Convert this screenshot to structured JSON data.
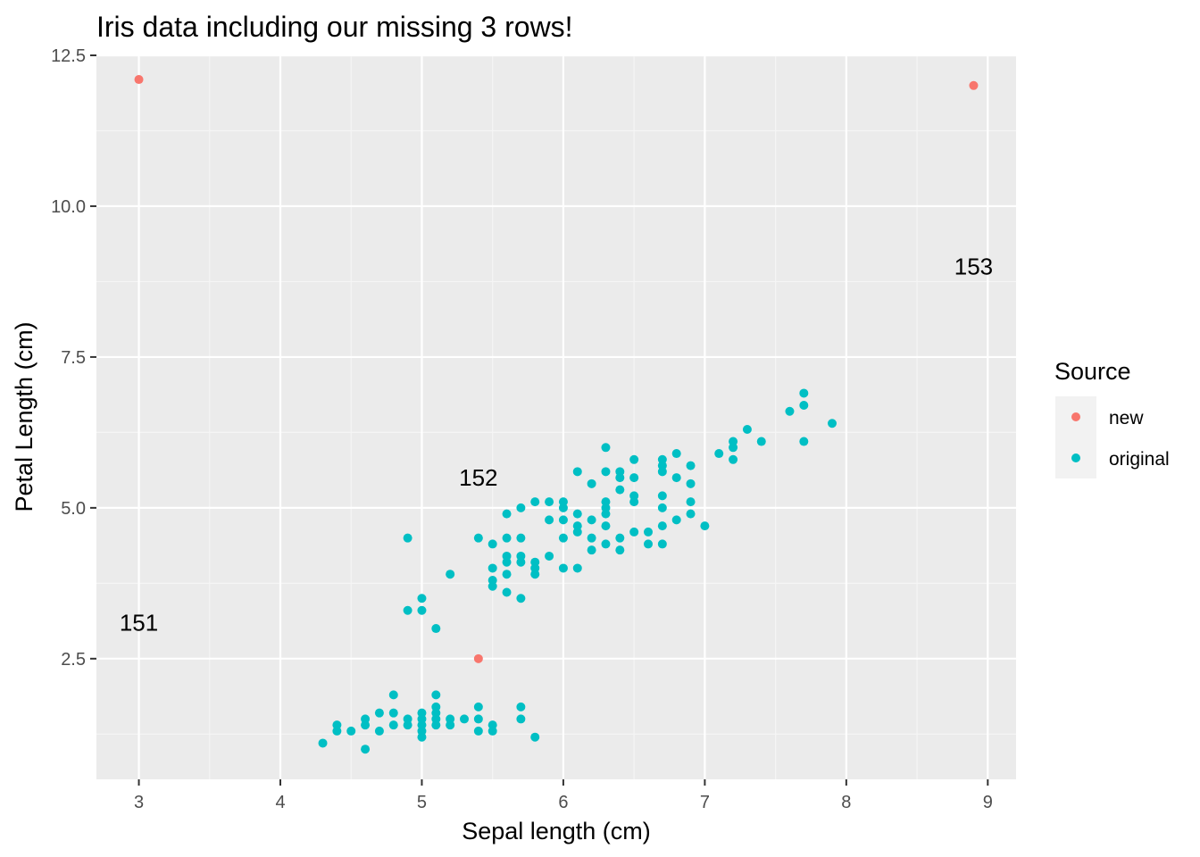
{
  "chart_data": {
    "type": "scatter",
    "title": "Iris data including our missing 3 rows!",
    "xlabel": "Sepal length (cm)",
    "ylabel": "Petal Length (cm)",
    "xlim": [
      2.7,
      9.2
    ],
    "ylim": [
      0.5,
      12.5
    ],
    "x_ticks": [
      3,
      4,
      5,
      6,
      7,
      8,
      9
    ],
    "x_tick_labels": [
      "3",
      "4",
      "5",
      "6",
      "7",
      "8",
      "9"
    ],
    "y_ticks": [
      2.5,
      5.0,
      7.5,
      10.0,
      12.5
    ],
    "y_tick_labels": [
      "2.5",
      "5.0",
      "7.5",
      "10.0",
      "12.5"
    ],
    "grid": true,
    "background": "#ebebeb",
    "legend": {
      "title": "Source",
      "position": "right",
      "entries": [
        {
          "label": "new",
          "color": "#f8766d"
        },
        {
          "label": "original",
          "color": "#00bfc4"
        }
      ]
    },
    "series": [
      {
        "name": "new",
        "color": "#f8766d",
        "points": [
          [
            3.0,
            12.1
          ],
          [
            5.4,
            2.5
          ],
          [
            8.9,
            12.0
          ]
        ]
      },
      {
        "name": "original",
        "color": "#00bfc4",
        "points": [
          [
            4.3,
            1.1
          ],
          [
            4.4,
            1.3
          ],
          [
            4.4,
            1.4
          ],
          [
            4.5,
            1.3
          ],
          [
            4.6,
            1.0
          ],
          [
            4.6,
            1.4
          ],
          [
            4.6,
            1.5
          ],
          [
            4.7,
            1.3
          ],
          [
            4.7,
            1.6
          ],
          [
            4.8,
            1.4
          ],
          [
            4.8,
            1.6
          ],
          [
            4.8,
            1.9
          ],
          [
            4.9,
            1.4
          ],
          [
            4.9,
            1.5
          ],
          [
            4.9,
            3.3
          ],
          [
            4.9,
            4.5
          ],
          [
            5.0,
            1.2
          ],
          [
            5.0,
            1.3
          ],
          [
            5.0,
            1.4
          ],
          [
            5.0,
            1.5
          ],
          [
            5.0,
            1.6
          ],
          [
            5.0,
            3.3
          ],
          [
            5.0,
            3.5
          ],
          [
            5.1,
            1.4
          ],
          [
            5.1,
            1.5
          ],
          [
            5.1,
            1.6
          ],
          [
            5.1,
            1.7
          ],
          [
            5.1,
            1.9
          ],
          [
            5.1,
            3.0
          ],
          [
            5.2,
            1.4
          ],
          [
            5.2,
            1.5
          ],
          [
            5.2,
            3.9
          ],
          [
            5.3,
            1.5
          ],
          [
            5.4,
            1.3
          ],
          [
            5.4,
            1.5
          ],
          [
            5.4,
            1.7
          ],
          [
            5.4,
            4.5
          ],
          [
            5.5,
            1.3
          ],
          [
            5.5,
            1.4
          ],
          [
            5.5,
            3.7
          ],
          [
            5.5,
            3.8
          ],
          [
            5.5,
            4.0
          ],
          [
            5.5,
            4.4
          ],
          [
            5.6,
            3.6
          ],
          [
            5.6,
            3.9
          ],
          [
            5.6,
            4.1
          ],
          [
            5.6,
            4.2
          ],
          [
            5.6,
            4.5
          ],
          [
            5.6,
            4.9
          ],
          [
            5.7,
            1.5
          ],
          [
            5.7,
            1.7
          ],
          [
            5.7,
            3.5
          ],
          [
            5.7,
            4.1
          ],
          [
            5.7,
            4.2
          ],
          [
            5.7,
            4.5
          ],
          [
            5.7,
            5.0
          ],
          [
            5.8,
            1.2
          ],
          [
            5.8,
            3.9
          ],
          [
            5.8,
            4.0
          ],
          [
            5.8,
            4.1
          ],
          [
            5.8,
            5.1
          ],
          [
            5.9,
            4.2
          ],
          [
            5.9,
            4.8
          ],
          [
            5.9,
            5.1
          ],
          [
            6.0,
            4.0
          ],
          [
            6.0,
            4.5
          ],
          [
            6.0,
            4.8
          ],
          [
            6.0,
            5.0
          ],
          [
            6.0,
            5.1
          ],
          [
            6.1,
            4.0
          ],
          [
            6.1,
            4.6
          ],
          [
            6.1,
            4.7
          ],
          [
            6.1,
            4.9
          ],
          [
            6.1,
            5.6
          ],
          [
            6.2,
            4.3
          ],
          [
            6.2,
            4.5
          ],
          [
            6.2,
            4.8
          ],
          [
            6.2,
            5.4
          ],
          [
            6.3,
            4.4
          ],
          [
            6.3,
            4.7
          ],
          [
            6.3,
            4.9
          ],
          [
            6.3,
            5.0
          ],
          [
            6.3,
            5.1
          ],
          [
            6.3,
            5.6
          ],
          [
            6.3,
            6.0
          ],
          [
            6.4,
            4.3
          ],
          [
            6.4,
            4.5
          ],
          [
            6.4,
            5.3
          ],
          [
            6.4,
            5.5
          ],
          [
            6.4,
            5.6
          ],
          [
            6.5,
            4.6
          ],
          [
            6.5,
            5.1
          ],
          [
            6.5,
            5.2
          ],
          [
            6.5,
            5.5
          ],
          [
            6.5,
            5.8
          ],
          [
            6.6,
            4.4
          ],
          [
            6.6,
            4.6
          ],
          [
            6.7,
            4.4
          ],
          [
            6.7,
            4.7
          ],
          [
            6.7,
            5.0
          ],
          [
            6.7,
            5.2
          ],
          [
            6.7,
            5.6
          ],
          [
            6.7,
            5.7
          ],
          [
            6.7,
            5.8
          ],
          [
            6.8,
            4.8
          ],
          [
            6.8,
            5.5
          ],
          [
            6.8,
            5.9
          ],
          [
            6.9,
            4.9
          ],
          [
            6.9,
            5.1
          ],
          [
            6.9,
            5.4
          ],
          [
            6.9,
            5.7
          ],
          [
            7.0,
            4.7
          ],
          [
            7.1,
            5.9
          ],
          [
            7.2,
            5.8
          ],
          [
            7.2,
            6.0
          ],
          [
            7.2,
            6.1
          ],
          [
            7.3,
            6.3
          ],
          [
            7.4,
            6.1
          ],
          [
            7.6,
            6.6
          ],
          [
            7.7,
            6.1
          ],
          [
            7.7,
            6.7
          ],
          [
            7.7,
            6.9
          ],
          [
            7.9,
            6.4
          ]
        ]
      }
    ],
    "annotations": [
      {
        "text": "151",
        "x": 3.0,
        "y": 3.1
      },
      {
        "text": "152",
        "x": 5.4,
        "y": 5.5
      },
      {
        "text": "153",
        "x": 8.9,
        "y": 9.0
      }
    ]
  }
}
